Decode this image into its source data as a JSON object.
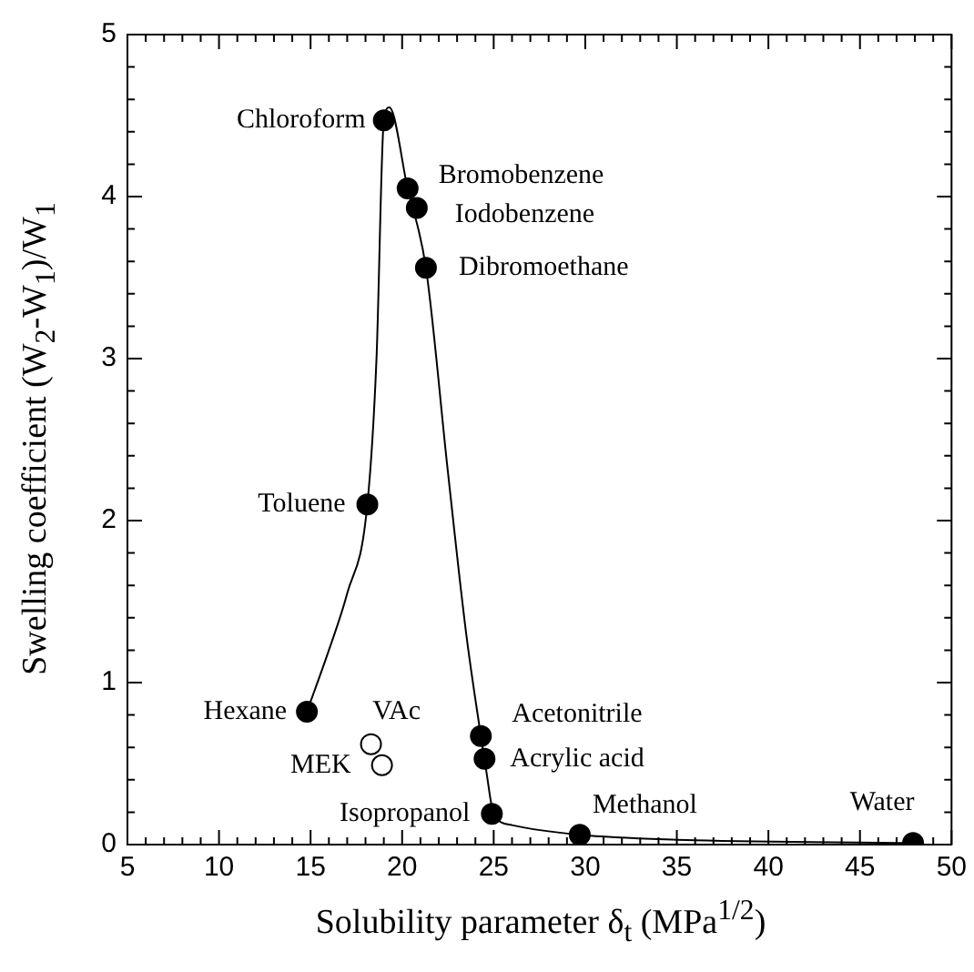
{
  "chart_data": {
    "type": "scatter",
    "xlabel": "Solubility parameter δ$_{t}$ (MPa$^{1/2}$)",
    "ylabel": "Swelling coefficient (W$_{2}$-W$_{1}$)/W$_{1}$",
    "xlim": [
      5,
      50
    ],
    "xticks": [
      5,
      10,
      15,
      20,
      25,
      30,
      35,
      40,
      45,
      50
    ],
    "ylim": [
      0,
      5
    ],
    "yticks": [
      0,
      1,
      2,
      3,
      4,
      5
    ],
    "grid": false,
    "legend": false,
    "marker": "circle",
    "series": [
      {
        "type": "line",
        "color": "#000000",
        "marker": "none",
        "x": [
          14.8,
          16,
          17,
          18.1,
          18.6,
          19.0,
          19.3,
          20.3,
          21.3,
          22.5,
          23.5,
          24.3,
          24.6,
          25,
          26,
          29.7,
          35,
          47.9
        ],
        "values": [
          0.82,
          1.2,
          1.55,
          2.1,
          3.0,
          4.47,
          4.55,
          4.05,
          3.56,
          2.3,
          1.3,
          0.67,
          0.45,
          0.19,
          0.12,
          0.06,
          0.03,
          0.01
        ]
      },
      {
        "type": "scatter",
        "color": "#000000",
        "x": [
          19.0,
          20.3,
          20.8,
          21.3,
          18.1,
          14.8,
          24.3,
          24.5,
          24.9,
          29.7,
          47.9
        ],
        "values": [
          4.47,
          4.05,
          3.93,
          3.56,
          2.1,
          0.82,
          0.67,
          0.53,
          0.19,
          0.06,
          0.01
        ]
      },
      {
        "type": "scatter",
        "color": "#ffffff",
        "x": [
          18.3,
          18.9
        ],
        "values": [
          0.62,
          0.49
        ]
      }
    ],
    "annotations": [
      {
        "text": "Chloroform",
        "x": 19.0,
        "y": 4.47
      },
      {
        "text": "Bromobenzene",
        "x": 20.3,
        "y": 4.05
      },
      {
        "text": "Iodobenzene",
        "x": 20.8,
        "y": 3.93
      },
      {
        "text": "Dibromoethane",
        "x": 21.3,
        "y": 3.56
      },
      {
        "text": "Toluene",
        "x": 18.1,
        "y": 2.1
      },
      {
        "text": "Hexane",
        "x": 14.8,
        "y": 0.82
      },
      {
        "text": "VAc",
        "x": 18.3,
        "y": 0.62
      },
      {
        "text": "MEK",
        "x": 18.9,
        "y": 0.49
      },
      {
        "text": "Acetonitrile",
        "x": 24.3,
        "y": 0.67
      },
      {
        "text": "Acrylic acid",
        "x": 24.5,
        "y": 0.53
      },
      {
        "text": "Isopropanol",
        "x": 24.9,
        "y": 0.19
      },
      {
        "text": "Methanol",
        "x": 29.7,
        "y": 0.06
      },
      {
        "text": "Water",
        "x": 47.9,
        "y": 0.01
      }
    ]
  }
}
